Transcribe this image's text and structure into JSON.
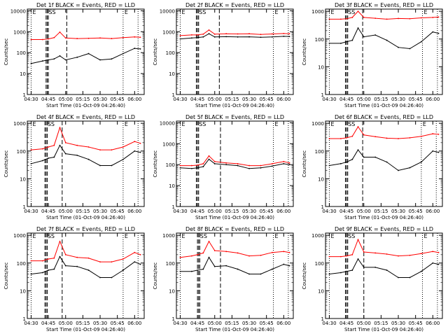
{
  "panels": [
    {
      "title": "Det 1f BLACK = Events, RED = LLD",
      "top_labels": [
        "E",
        "SS",
        "E"
      ],
      "xticks": [
        "04:30",
        "04:45",
        "05:00",
        "05:15",
        "05:30",
        "05:45",
        "06:00"
      ],
      "yticks": [
        "1",
        "10",
        "100",
        "1000",
        "10000"
      ]
    },
    {
      "title": "Det 2f BLACK = Events, RED = LLD",
      "top_labels": [
        "E",
        "SS",
        "E"
      ],
      "xticks": [
        "04:30",
        "04:45",
        "05:00",
        "05:15",
        "05:30",
        "05:45",
        "06:00"
      ],
      "yticks": [
        "1",
        "10",
        "100",
        "1000",
        "10000"
      ]
    },
    {
      "title": "Det 3f BLACK = Events, RED = LLD",
      "top_labels": [
        "E",
        "SS",
        "E"
      ],
      "xticks": [
        "04:30",
        "04:45",
        "05:00",
        "05:15",
        "05:30",
        "05:45",
        "06:00"
      ],
      "yticks": [
        "1",
        "10",
        "100",
        "1000"
      ]
    },
    {
      "title": "Det 4f BLACK = Events, RED = LLD",
      "top_labels": [
        "E",
        "SS",
        "E"
      ],
      "xticks": [
        "04:30",
        "04:45",
        "05:00",
        "05:15",
        "05:30",
        "05:45",
        "06:00"
      ],
      "yticks": [
        "1",
        "10",
        "100",
        "1000"
      ]
    },
    {
      "title": "Det 5f BLACK = Events, RED = LLD",
      "top_labels": [
        "E",
        "SS",
        "E"
      ],
      "xticks": [
        "04:30",
        "04:45",
        "05:00",
        "05:15",
        "05:30",
        "05:45",
        "06:00"
      ],
      "yticks": [
        "1",
        "10",
        "100",
        "1000",
        "10000"
      ]
    },
    {
      "title": "Det 6f BLACK = Events, RED = LLD",
      "top_labels": [
        "E",
        "SS",
        "E"
      ],
      "xticks": [
        "04:30",
        "04:45",
        "05:00",
        "05:15",
        "05:30",
        "05:45",
        "06:00"
      ],
      "yticks": [
        "1",
        "10",
        "100",
        "1000"
      ]
    },
    {
      "title": "Det 7f BLACK = Events, RED = LLD",
      "top_labels": [
        "E",
        "SS",
        "E"
      ],
      "xticks": [
        "04:30",
        "04:45",
        "05:00",
        "05:15",
        "05:30",
        "05:45",
        "06:00"
      ],
      "yticks": [
        "1",
        "10",
        "100",
        "1000"
      ]
    },
    {
      "title": "Det 8f BLACK = Events, RED = LLD",
      "top_labels": [
        "E",
        "SS",
        "E"
      ],
      "xticks": [
        "04:30",
        "04:45",
        "05:00",
        "05:15",
        "05:30",
        "05:45",
        "06:00"
      ],
      "yticks": [
        "1",
        "10",
        "100",
        "1000"
      ]
    },
    {
      "title": "Det 9f BLACK = Events, RED = LLD",
      "top_labels": [
        "E",
        "SS",
        "E"
      ],
      "xticks": [
        "04:30",
        "04:45",
        "05:00",
        "05:15",
        "05:30",
        "05:45",
        "06:00"
      ],
      "yticks": [
        "1",
        "10",
        "100",
        "1000"
      ]
    }
  ],
  "ylabel": "Counts/sec",
  "xlabel": "Start Time (01-Oct-09 04:26:40)",
  "colors": {
    "events": "#000000",
    "lld": "#ff0000",
    "axes": "#000000",
    "background": "#ffffff"
  },
  "chart_data": [
    {
      "type": "line",
      "title": "Det 1f BLACK = Events, RED = LLD",
      "xlabel": "Start Time (01-Oct-09 04:26:40)",
      "ylabel": "Counts/sec",
      "yscale": "log",
      "ylim": [
        1,
        12000
      ],
      "xlim": [
        "04:26:40",
        "06:08:20"
      ],
      "x": [
        "04:30",
        "04:40",
        "04:45",
        "04:50",
        "04:55",
        "05:00",
        "05:10",
        "05:20",
        "05:30",
        "05:40",
        "05:50",
        "06:00",
        "06:05"
      ],
      "series": [
        {
          "name": "LLD",
          "values": [
            420,
            420,
            450,
            520,
            950,
            500,
            470,
            480,
            500,
            470,
            520,
            560,
            540
          ]
        },
        {
          "name": "Events",
          "values": [
            30,
            40,
            45,
            50,
            70,
            45,
            60,
            90,
            45,
            50,
            90,
            160,
            150
          ]
        }
      ],
      "vlines_dashed": [
        "04:43",
        "04:44",
        "04:45",
        "05:01"
      ],
      "vlines_dotted": [
        "04:30",
        "05:50",
        "06:03"
      ]
    },
    {
      "type": "line",
      "title": "Det 2f BLACK = Events, RED = LLD",
      "xlabel": "Start Time (01-Oct-09 04:26:40)",
      "ylabel": "Counts/sec",
      "yscale": "log",
      "ylim": [
        1,
        12000
      ],
      "xlim": [
        "04:26:40",
        "06:08:20"
      ],
      "x": [
        "04:30",
        "04:40",
        "04:45",
        "04:50",
        "04:55",
        "05:00",
        "05:10",
        "05:20",
        "05:30",
        "05:40",
        "05:50",
        "06:00",
        "06:05"
      ],
      "series": [
        {
          "name": "LLD",
          "values": [
            650,
            700,
            700,
            760,
            1200,
            760,
            800,
            780,
            800,
            740,
            780,
            820,
            800
          ]
        },
        {
          "name": "Events",
          "values": [
            450,
            500,
            520,
            560,
            800,
            560,
            580,
            560,
            570,
            540,
            560,
            600,
            590
          ]
        }
      ],
      "vlines_dashed": [
        "04:44",
        "04:45",
        "04:46",
        "05:04"
      ],
      "vlines_dotted": [
        "04:30",
        "05:51",
        "06:04"
      ]
    },
    {
      "type": "line",
      "title": "Det 3f BLACK = Events, RED = LLD",
      "xlabel": "Start Time (01-Oct-09 04:26:40)",
      "ylabel": "Counts/sec",
      "yscale": "log",
      "ylim": [
        1,
        1200
      ],
      "xlim": [
        "04:26:40",
        "06:08:20"
      ],
      "x": [
        "04:30",
        "04:40",
        "04:45",
        "04:50",
        "04:55",
        "05:00",
        "05:10",
        "05:20",
        "05:30",
        "05:40",
        "05:50",
        "06:00",
        "06:05"
      ],
      "series": [
        {
          "name": "LLD",
          "values": [
            520,
            520,
            540,
            600,
            1000,
            600,
            560,
            520,
            550,
            540,
            580,
            600,
            620
          ]
        },
        {
          "name": "Events",
          "values": [
            70,
            70,
            80,
            90,
            250,
            120,
            140,
            90,
            50,
            45,
            80,
            180,
            160
          ]
        }
      ],
      "vlines_dashed": [
        "04:44",
        "04:45",
        "04:46",
        "04:59"
      ],
      "vlines_dotted": [
        "04:30",
        "05:51",
        "06:04"
      ]
    },
    {
      "type": "line",
      "title": "Det 4f BLACK = Events, RED = LLD",
      "xlabel": "Start Time (01-Oct-09 04:26:40)",
      "ylabel": "Counts/sec",
      "yscale": "log",
      "ylim": [
        1,
        1200
      ],
      "xlim": [
        "04:26:40",
        "06:08:20"
      ],
      "x": [
        "04:30",
        "04:40",
        "04:45",
        "04:50",
        "04:55",
        "05:00",
        "05:10",
        "05:20",
        "05:30",
        "05:40",
        "05:50",
        "06:00",
        "06:05"
      ],
      "series": [
        {
          "name": "LLD",
          "values": [
            110,
            120,
            140,
            160,
            700,
            200,
            160,
            140,
            110,
            110,
            140,
            220,
            190
          ]
        },
        {
          "name": "Events",
          "values": [
            35,
            45,
            55,
            60,
            160,
            80,
            70,
            50,
            30,
            30,
            50,
            100,
            90
          ]
        }
      ],
      "vlines_dashed": [
        "04:42",
        "04:43",
        "04:44",
        "04:57"
      ],
      "vlines_dotted": [
        "04:30",
        "05:50",
        "06:03"
      ]
    },
    {
      "type": "line",
      "title": "Det 5f BLACK = Events, RED = LLD",
      "xlabel": "Start Time (01-Oct-09 04:26:40)",
      "ylabel": "Counts/sec",
      "yscale": "log",
      "ylim": [
        1,
        12000
      ],
      "xlim": [
        "04:26:40",
        "06:08:20"
      ],
      "x": [
        "04:30",
        "04:40",
        "04:45",
        "04:50",
        "04:55",
        "05:00",
        "05:10",
        "05:20",
        "05:30",
        "05:40",
        "05:50",
        "06:00",
        "06:05"
      ],
      "series": [
        {
          "name": "LLD",
          "values": [
            90,
            90,
            95,
            110,
            260,
            140,
            120,
            110,
            90,
            90,
            110,
            140,
            120
          ]
        },
        {
          "name": "Events",
          "values": [
            70,
            65,
            70,
            80,
            180,
            110,
            100,
            90,
            65,
            70,
            85,
            110,
            100
          ]
        }
      ],
      "vlines_dashed": [
        "04:44",
        "04:45",
        "04:46",
        "05:05"
      ],
      "vlines_dotted": [
        "04:30",
        "05:51",
        "06:04"
      ]
    },
    {
      "type": "line",
      "title": "Det 6f BLACK = Events, RED = LLD",
      "xlabel": "Start Time (01-Oct-09 04:26:40)",
      "ylabel": "Counts/sec",
      "yscale": "log",
      "ylim": [
        1,
        1200
      ],
      "xlim": [
        "04:26:40",
        "06:08:20"
      ],
      "x": [
        "04:30",
        "04:40",
        "04:45",
        "04:50",
        "04:55",
        "05:00",
        "05:10",
        "05:20",
        "05:30",
        "05:40",
        "05:50",
        "06:00",
        "06:05"
      ],
      "series": [
        {
          "name": "LLD",
          "values": [
            280,
            280,
            300,
            340,
            750,
            380,
            330,
            290,
            280,
            300,
            340,
            420,
            400
          ]
        },
        {
          "name": "Events",
          "values": [
            30,
            35,
            40,
            50,
            110,
            60,
            60,
            40,
            20,
            25,
            40,
            100,
            90
          ]
        }
      ],
      "vlines_dashed": [
        "04:44",
        "04:45",
        "04:46",
        "04:59"
      ],
      "vlines_dotted": [
        "04:30",
        "05:50",
        "06:03"
      ]
    },
    {
      "type": "line",
      "title": "Det 7f BLACK = Events, RED = LLD",
      "xlabel": "Start Time (01-Oct-09 04:26:40)",
      "ylabel": "Counts/sec",
      "yscale": "log",
      "ylim": [
        1,
        1200
      ],
      "xlim": [
        "04:26:40",
        "06:08:20"
      ],
      "x": [
        "04:30",
        "04:40",
        "04:45",
        "04:50",
        "04:55",
        "05:00",
        "05:10",
        "05:20",
        "05:30",
        "05:40",
        "05:50",
        "06:00",
        "06:05"
      ],
      "series": [
        {
          "name": "LLD",
          "values": [
            120,
            120,
            140,
            150,
            600,
            200,
            160,
            150,
            110,
            110,
            140,
            240,
            200
          ]
        },
        {
          "name": "Events",
          "values": [
            40,
            45,
            55,
            60,
            170,
            80,
            75,
            55,
            30,
            30,
            55,
            110,
            90
          ]
        }
      ],
      "vlines_dashed": [
        "04:42",
        "04:43",
        "04:44",
        "04:57"
      ],
      "vlines_dotted": [
        "04:30",
        "05:50",
        "06:03"
      ]
    },
    {
      "type": "line",
      "title": "Det 8f BLACK = Events, RED = LLD",
      "xlabel": "Start Time (01-Oct-09 04:26:40)",
      "ylabel": "Counts/sec",
      "yscale": "log",
      "ylim": [
        1,
        1200
      ],
      "xlim": [
        "04:26:40",
        "06:08:20"
      ],
      "x": [
        "04:30",
        "04:40",
        "04:45",
        "04:50",
        "04:55",
        "05:00",
        "05:10",
        "05:20",
        "05:30",
        "05:40",
        "05:50",
        "06:00",
        "06:05"
      ],
      "series": [
        {
          "name": "LLD",
          "values": [
            160,
            180,
            200,
            230,
            600,
            280,
            260,
            230,
            180,
            190,
            240,
            260,
            240
          ]
        },
        {
          "name": "Events",
          "values": [
            50,
            50,
            55,
            60,
            160,
            75,
            80,
            60,
            40,
            40,
            60,
            90,
            80
          ]
        }
      ],
      "vlines_dashed": [
        "04:45",
        "04:46",
        "04:47",
        "05:05"
      ],
      "vlines_dotted": [
        "04:30",
        "05:51",
        "06:04"
      ]
    },
    {
      "type": "line",
      "title": "Det 9f BLACK = Events, RED = LLD",
      "xlabel": "Start Time (01-Oct-09 04:26:40)",
      "ylabel": "Counts/sec",
      "yscale": "log",
      "ylim": [
        1,
        1200
      ],
      "xlim": [
        "04:26:40",
        "06:08:20"
      ],
      "x": [
        "04:30",
        "04:40",
        "04:45",
        "04:50",
        "04:55",
        "05:00",
        "05:10",
        "05:20",
        "05:30",
        "05:40",
        "05:50",
        "06:00",
        "06:05"
      ],
      "series": [
        {
          "name": "LLD",
          "values": [
            170,
            170,
            180,
            200,
            700,
            250,
            230,
            210,
            180,
            190,
            220,
            260,
            240
          ]
        },
        {
          "name": "Events",
          "values": [
            40,
            45,
            50,
            55,
            140,
            70,
            70,
            55,
            30,
            30,
            50,
            100,
            90
          ]
        }
      ],
      "vlines_dashed": [
        "04:44",
        "04:45",
        "04:46",
        "05:00"
      ],
      "vlines_dotted": [
        "04:30",
        "05:51",
        "06:04"
      ]
    }
  ]
}
